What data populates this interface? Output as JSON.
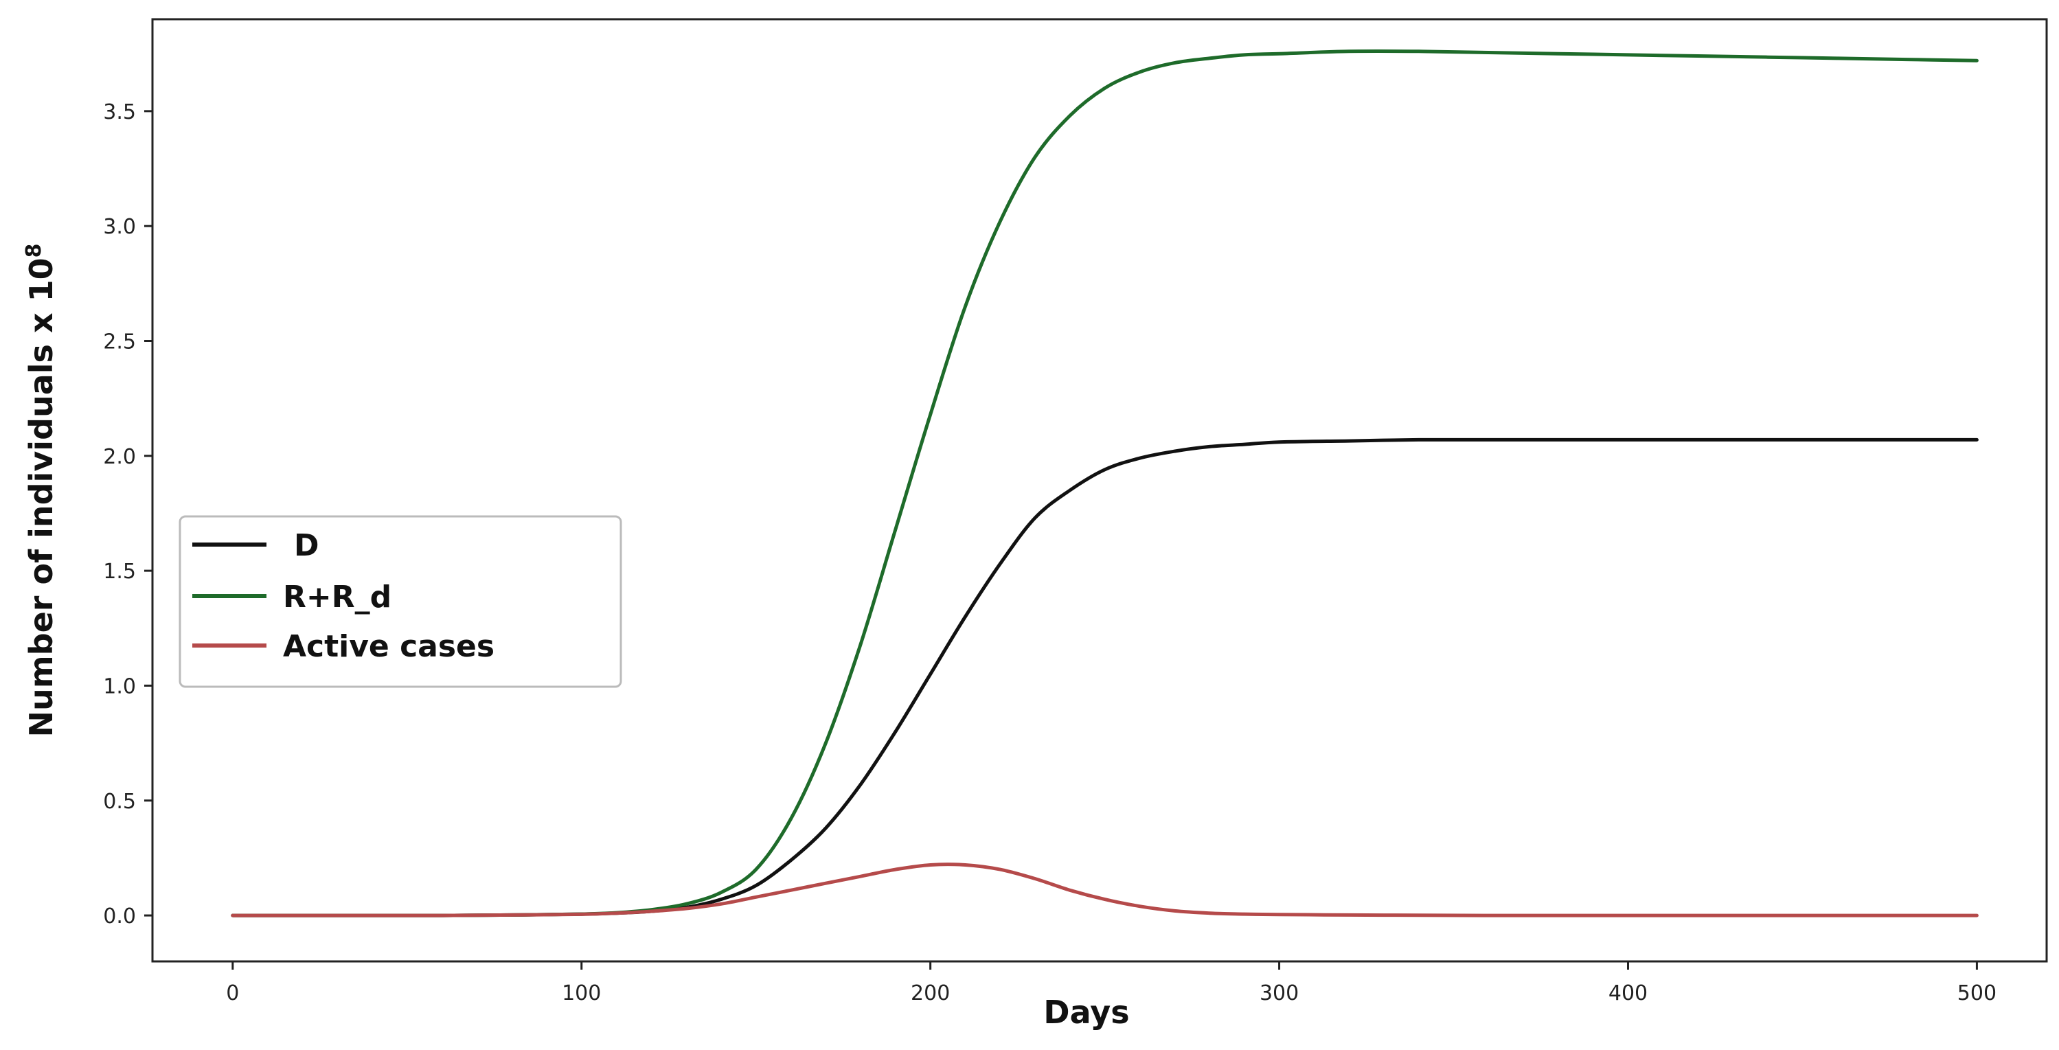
{
  "chart_data": {
    "type": "line",
    "title": "",
    "xlabel": "Days",
    "ylabel": "Number of individuals x 10",
    "ylabel_exponent": "8",
    "xlim": [
      -23,
      520
    ],
    "ylim": [
      -0.2,
      3.9
    ],
    "xticks": [
      0,
      100,
      200,
      300,
      400,
      500
    ],
    "xtick_labels": [
      "0",
      "100",
      "200",
      "300",
      "400",
      "500"
    ],
    "yticks": [
      0.0,
      0.5,
      1.0,
      1.5,
      2.0,
      2.5,
      3.0,
      3.5
    ],
    "ytick_labels": [
      "0.0",
      "0.5",
      "1.0",
      "1.5",
      "2.0",
      "2.5",
      "3.0",
      "3.5"
    ],
    "grid": false,
    "legend_position": "center-left",
    "x": [
      0,
      20,
      40,
      60,
      80,
      100,
      110,
      120,
      130,
      140,
      150,
      160,
      170,
      180,
      190,
      200,
      210,
      220,
      230,
      240,
      250,
      260,
      270,
      280,
      290,
      300,
      320,
      340,
      360,
      380,
      400,
      420,
      440,
      460,
      480,
      500
    ],
    "series": [
      {
        "name": "D",
        "color": "#111111",
        "values": [
          0,
          0,
          0,
          0,
          0.002,
          0.006,
          0.01,
          0.018,
          0.035,
          0.07,
          0.13,
          0.24,
          0.38,
          0.57,
          0.8,
          1.05,
          1.3,
          1.53,
          1.73,
          1.85,
          1.94,
          1.99,
          2.02,
          2.04,
          2.05,
          2.06,
          2.065,
          2.07,
          2.07,
          2.07,
          2.07,
          2.07,
          2.07,
          2.07,
          2.07,
          2.07
        ]
      },
      {
        "name": "R+R_d",
        "color": "#1e6b2a",
        "values": [
          0,
          0,
          0,
          0,
          0.002,
          0.006,
          0.012,
          0.025,
          0.05,
          0.1,
          0.2,
          0.42,
          0.75,
          1.18,
          1.68,
          2.18,
          2.65,
          3.02,
          3.3,
          3.48,
          3.6,
          3.67,
          3.71,
          3.73,
          3.745,
          3.75,
          3.76,
          3.76,
          3.755,
          3.75,
          3.745,
          3.74,
          3.735,
          3.73,
          3.725,
          3.72
        ]
      },
      {
        "name": "Active cases",
        "color": "#b54a4a",
        "values": [
          0,
          0,
          0,
          0,
          0.002,
          0.005,
          0.01,
          0.018,
          0.03,
          0.05,
          0.08,
          0.11,
          0.14,
          0.17,
          0.2,
          0.22,
          0.22,
          0.2,
          0.16,
          0.11,
          0.07,
          0.04,
          0.02,
          0.01,
          0.006,
          0.004,
          0.002,
          0.001,
          0,
          0,
          0,
          0,
          0,
          0,
          0,
          0
        ]
      }
    ]
  }
}
